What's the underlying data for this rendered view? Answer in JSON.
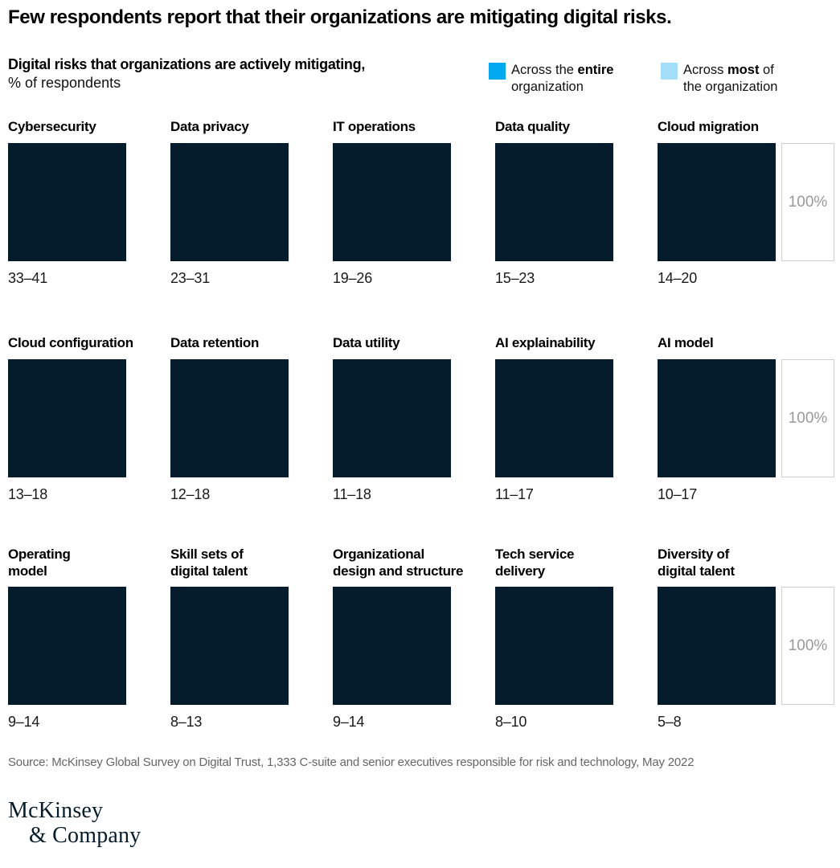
{
  "title": "Few respondents report that their organizations are mitigating digital risks.",
  "subtitle": {
    "bold_line": "Digital risks that organizations are actively mitigating,",
    "normal_line": "% of respondents"
  },
  "legend": {
    "items": [
      {
        "pre": "Across the ",
        "bold": "entire",
        "post": " organization",
        "color": "#00A8F0"
      },
      {
        "pre": "Across ",
        "bold": "most",
        "post": " of the organization",
        "color": "#A3DEF8"
      }
    ]
  },
  "colors": {
    "bar_fill": "#051C2C",
    "legend_entire": "#00A8F0",
    "legend_most": "#A3DEF8",
    "axis_box_border": "#cfcfcf",
    "axis_text": "#999999"
  },
  "axis": {
    "max_label": "100%"
  },
  "rows": [
    {
      "cards": [
        {
          "label": "Cybersecurity",
          "value": "33–41"
        },
        {
          "label": "Data privacy",
          "value": "23–31"
        },
        {
          "label": "IT operations",
          "value": "19–26"
        },
        {
          "label": "Data quality",
          "value": "15–23"
        },
        {
          "label": "Cloud migration",
          "value": "14–20"
        }
      ]
    },
    {
      "cards": [
        {
          "label": "Cloud configuration",
          "value": "13–18"
        },
        {
          "label": "Data retention",
          "value": "12–18"
        },
        {
          "label": "Data utility",
          "value": "11–18"
        },
        {
          "label": "AI explainability",
          "value": "11–17"
        },
        {
          "label": "AI model",
          "value": "10–17"
        }
      ]
    },
    {
      "cards": [
        {
          "label": "Operating\nmodel",
          "value": "9–14"
        },
        {
          "label": "Skill sets of\ndigital talent",
          "value": "8–13"
        },
        {
          "label": "Organizational\ndesign and structure",
          "value": "9–14"
        },
        {
          "label": "Tech service\ndelivery",
          "value": "8–10"
        },
        {
          "label": "Diversity of\ndigital talent",
          "value": "5–8"
        }
      ]
    }
  ],
  "source": "Source: McKinsey Global Survey on Digital Trust, 1,333 C-suite and senior executives responsible for risk and technology, May 2022",
  "logo": {
    "line1": "McKinsey",
    "line2": "& Company"
  },
  "chart_data": {
    "type": "bar",
    "title": "Digital risks that organizations are actively mitigating",
    "ylabel": "% of respondents",
    "ylim": [
      0,
      100
    ],
    "legend_entries": [
      "Across the entire organization",
      "Across most of the organization"
    ],
    "legend_position": "top-right",
    "layout": "small-multiples grid, 3 rows x 5 columns, each cell a 100% square; row-end reference box labeled 100%",
    "categories": [
      "Cybersecurity",
      "Data privacy",
      "IT operations",
      "Data quality",
      "Cloud migration",
      "Cloud configuration",
      "Data retention",
      "Data utility",
      "AI explainability",
      "AI model",
      "Operating model",
      "Skill sets of digital talent",
      "Organizational design and structure",
      "Tech service delivery",
      "Diversity of digital talent"
    ],
    "ranges": [
      {
        "category": "Cybersecurity",
        "low": 33,
        "high": 41,
        "label": "33–41"
      },
      {
        "category": "Data privacy",
        "low": 23,
        "high": 31,
        "label": "23–31"
      },
      {
        "category": "IT operations",
        "low": 19,
        "high": 26,
        "label": "19–26"
      },
      {
        "category": "Data quality",
        "low": 15,
        "high": 23,
        "label": "15–23"
      },
      {
        "category": "Cloud migration",
        "low": 14,
        "high": 20,
        "label": "14–20"
      },
      {
        "category": "Cloud configuration",
        "low": 13,
        "high": 18,
        "label": "13–18"
      },
      {
        "category": "Data retention",
        "low": 12,
        "high": 18,
        "label": "12–18"
      },
      {
        "category": "Data utility",
        "low": 11,
        "high": 18,
        "label": "11–18"
      },
      {
        "category": "AI explainability",
        "low": 11,
        "high": 17,
        "label": "11–17"
      },
      {
        "category": "AI model",
        "low": 10,
        "high": 17,
        "label": "10–17"
      },
      {
        "category": "Operating model",
        "low": 9,
        "high": 14,
        "label": "9–14"
      },
      {
        "category": "Skill sets of digital talent",
        "low": 8,
        "high": 13,
        "label": "8–13"
      },
      {
        "category": "Organizational design and structure",
        "low": 9,
        "high": 14,
        "label": "9–14"
      },
      {
        "category": "Tech service delivery",
        "low": 8,
        "high": 10,
        "label": "8–10"
      },
      {
        "category": "Diversity of digital talent",
        "low": 5,
        "high": 8,
        "label": "5–8"
      }
    ]
  }
}
